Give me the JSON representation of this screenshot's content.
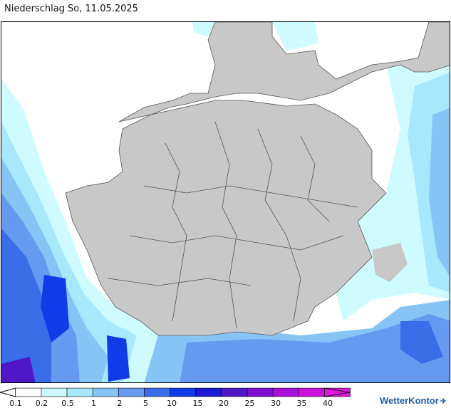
{
  "header": {
    "title": "Niederschlag So, 11.05.2025"
  },
  "legend": {
    "steps": [
      {
        "label": "0.1",
        "color": "#ffffff"
      },
      {
        "label": "0.2",
        "color": "#cdfbff"
      },
      {
        "label": "0.5",
        "color": "#a8e8fc"
      },
      {
        "label": "1",
        "color": "#87c4f6"
      },
      {
        "label": "2",
        "color": "#669af0"
      },
      {
        "label": "5",
        "color": "#3a6ee8"
      },
      {
        "label": "10",
        "color": "#123be8"
      },
      {
        "label": "15",
        "color": "#1a1ad0"
      },
      {
        "label": "20",
        "color": "#4f17c8"
      },
      {
        "label": "25",
        "color": "#7d0fd0"
      },
      {
        "label": "30",
        "color": "#a80fd8"
      },
      {
        "label": "35",
        "color": "#cc10dc"
      },
      {
        "label": "40",
        "color": "#e215e2"
      }
    ]
  },
  "brand": {
    "name": "WetterKontor",
    "icon": "wetterkontor-logo-icon"
  },
  "colors": {
    "land": "#c8c8c8",
    "sea": "#ffffff",
    "border": "#555555"
  }
}
